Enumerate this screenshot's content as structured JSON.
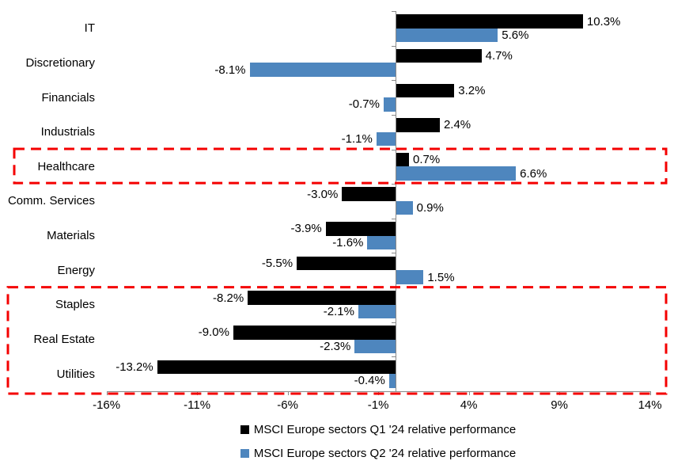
{
  "chart_data": {
    "type": "bar",
    "orientation": "horizontal",
    "title": "",
    "categories": [
      "IT",
      "Discretionary",
      "Financials",
      "Industrials",
      "Healthcare",
      "Comm. Services",
      "Materials",
      "Energy",
      "Staples",
      "Real Estate",
      "Utilities"
    ],
    "series": [
      {
        "name": "MSCI Europe sectors Q1 '24 relative performance",
        "color": "#000000",
        "values": [
          10.3,
          4.7,
          3.2,
          2.4,
          0.7,
          -3.0,
          -3.9,
          -5.5,
          -8.2,
          -9.0,
          -13.2
        ]
      },
      {
        "name": "MSCI Europe sectors Q2 '24 relative performance",
        "color": "#4E86BE",
        "values": [
          5.6,
          -8.1,
          -0.7,
          -1.1,
          6.6,
          0.9,
          -1.6,
          1.5,
          -2.1,
          -2.3,
          -0.4
        ]
      }
    ],
    "x_axis": {
      "tick_labels": [
        "-16%",
        "-11%",
        "-6%",
        "-1%",
        "4%",
        "9%",
        "14%"
      ],
      "tick_values": [
        -16,
        -11,
        -6,
        -1,
        4,
        9,
        14
      ],
      "min": -16,
      "max": 14,
      "unit": "%"
    },
    "data_labels": [
      "10.3%",
      "5.6%",
      "4.7%",
      "-8.1%",
      "3.2%",
      "-0.7%",
      "2.4%",
      "-1.1%",
      "0.7%",
      "6.6%",
      "-3.0%",
      "0.9%",
      "-3.9%",
      "-1.6%",
      "-5.5%",
      "1.5%",
      "-8.2%",
      "-2.1%",
      "-9.0%",
      "-2.3%",
      "-13.2%",
      "-0.4%"
    ],
    "grid": false,
    "legend_position": "bottom",
    "annotations": [
      {
        "type": "highlight-box",
        "style": "dashed",
        "color": "#F40000",
        "categories": [
          "Healthcare"
        ]
      },
      {
        "type": "highlight-box",
        "style": "dashed",
        "color": "#F40000",
        "categories": [
          "Staples",
          "Real Estate",
          "Utilities"
        ]
      }
    ],
    "colors": {
      "q1_bar": "#000000",
      "q2_bar": "#4E86BE",
      "axis": "#898989",
      "highlight": "#F40000",
      "text": "#000000",
      "background": "#FFFFFF"
    }
  }
}
